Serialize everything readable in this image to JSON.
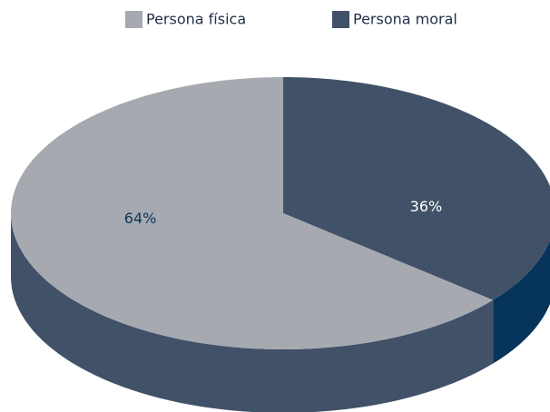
{
  "chart_data": {
    "type": "pie3d",
    "categories": [
      "Persona física",
      "Persona moral"
    ],
    "values": [
      64,
      36
    ],
    "value_labels": [
      "64%",
      "36%"
    ],
    "colors": [
      "#a6a9b0",
      "#415168"
    ],
    "legend": "top"
  }
}
